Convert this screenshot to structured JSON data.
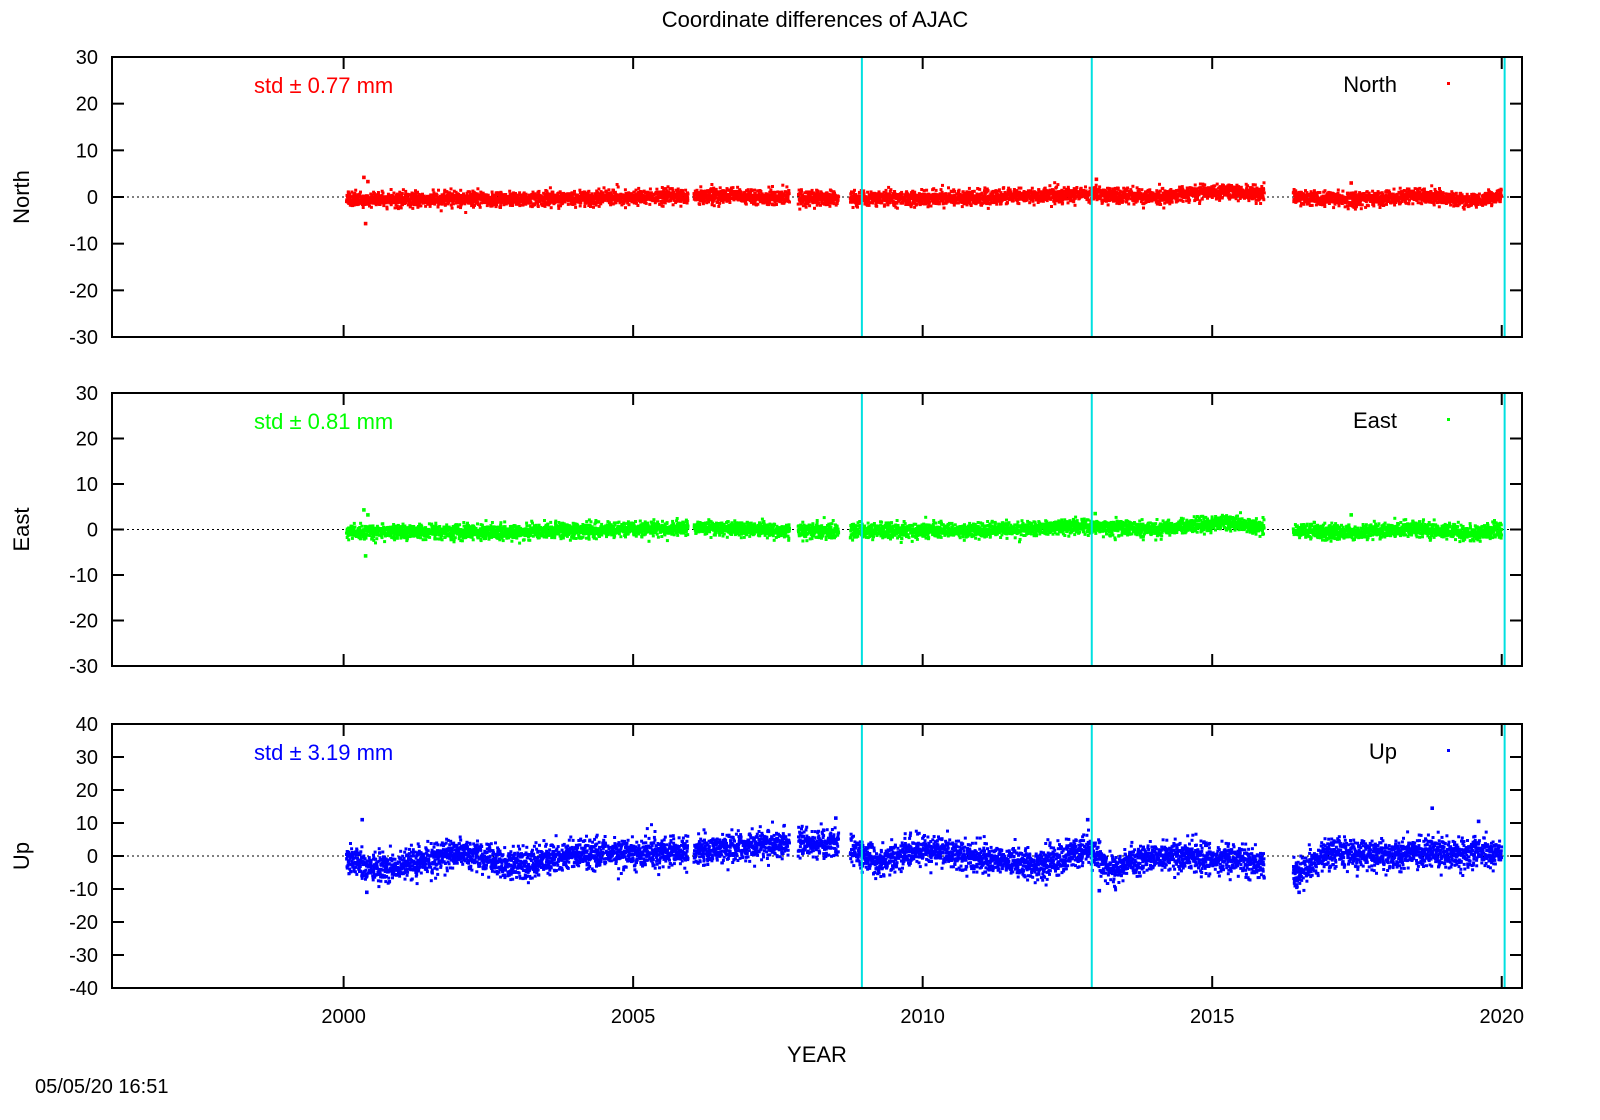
{
  "chart_data": {
    "type": "scatter",
    "title": "Coordinate differences of AJAC",
    "xlabel": "YEAR",
    "xlim": [
      1996.0,
      2020.35
    ],
    "xticks": [
      2000,
      2005,
      2010,
      2015,
      2020
    ],
    "timestamp": "05/05/20 16:51",
    "colors": {
      "axis": "#000000",
      "event_line": "#00e0e0",
      "zero_line": "#000000"
    },
    "event_lines": [
      2008.95,
      2012.92,
      2020.05
    ],
    "panels": [
      {
        "name": "North",
        "ylabel": "North",
        "ylim": [
          -30,
          30
        ],
        "yticks": [
          -30,
          -20,
          -10,
          0,
          10,
          20,
          30
        ],
        "std_label": "std ± 0.77 mm",
        "legend": "North",
        "legend_position": "top-right",
        "color": "#ff0000",
        "grid": false,
        "x_start": 2000.05,
        "x_end": 2020.0,
        "noise": 0.77,
        "gaps": [
          [
            2005.95,
            2006.05
          ],
          [
            2007.7,
            2007.85
          ],
          [
            2008.55,
            2008.75
          ],
          [
            2015.9,
            2016.4
          ]
        ],
        "trend": [
          [
            2000.0,
            -0.5
          ],
          [
            2003.0,
            -0.5
          ],
          [
            2006.0,
            0.3
          ],
          [
            2008.0,
            -0.3
          ],
          [
            2011.0,
            -0.2
          ],
          [
            2013.0,
            0.7
          ],
          [
            2014.0,
            0.0
          ],
          [
            2015.2,
            1.4
          ],
          [
            2016.5,
            -0.2
          ],
          [
            2017.5,
            -0.6
          ],
          [
            2018.5,
            0.3
          ],
          [
            2019.5,
            -0.8
          ],
          [
            2020.0,
            0.0
          ]
        ],
        "outliers": [
          [
            2000.35,
            4.2
          ],
          [
            2000.42,
            3.3
          ],
          [
            2000.38,
            -5.7
          ],
          [
            2013.0,
            3.8
          ],
          [
            2017.4,
            3.0
          ]
        ]
      },
      {
        "name": "East",
        "ylabel": "East",
        "ylim": [
          -30,
          30
        ],
        "yticks": [
          -30,
          -20,
          -10,
          0,
          10,
          20,
          30
        ],
        "std_label": "std ± 0.81 mm",
        "legend": "East",
        "legend_position": "top-right",
        "color": "#00ff00",
        "grid": false,
        "x_start": 2000.05,
        "x_end": 2020.0,
        "noise": 0.81,
        "gaps": [
          [
            2005.95,
            2006.05
          ],
          [
            2007.7,
            2007.85
          ],
          [
            2008.55,
            2008.75
          ],
          [
            2015.9,
            2016.4
          ]
        ],
        "trend": [
          [
            2000.0,
            -0.5
          ],
          [
            2003.0,
            -0.5
          ],
          [
            2006.0,
            0.3
          ],
          [
            2008.0,
            -0.3
          ],
          [
            2011.0,
            -0.2
          ],
          [
            2013.0,
            0.8
          ],
          [
            2014.0,
            0.0
          ],
          [
            2015.2,
            1.5
          ],
          [
            2016.5,
            -0.3
          ],
          [
            2017.5,
            -0.7
          ],
          [
            2018.5,
            0.3
          ],
          [
            2019.5,
            -0.9
          ],
          [
            2020.0,
            0.0
          ]
        ],
        "outliers": [
          [
            2000.35,
            4.3
          ],
          [
            2000.42,
            3.2
          ],
          [
            2000.38,
            -5.8
          ],
          [
            2012.98,
            3.5
          ],
          [
            2017.4,
            3.2
          ]
        ]
      },
      {
        "name": "Up",
        "ylabel": "Up",
        "ylim": [
          -40,
          40
        ],
        "yticks": [
          -40,
          -30,
          -20,
          -10,
          0,
          10,
          20,
          30,
          40
        ],
        "std_label": "std ± 3.19 mm",
        "legend": "Up",
        "legend_position": "top-right",
        "color": "#0000ff",
        "grid": false,
        "x_start": 2000.05,
        "x_end": 2020.0,
        "noise": 2.2,
        "gaps": [
          [
            2005.95,
            2006.05
          ],
          [
            2007.7,
            2007.85
          ],
          [
            2008.55,
            2008.75
          ],
          [
            2015.9,
            2016.4
          ]
        ],
        "trend": [
          [
            2000.0,
            -1.0
          ],
          [
            2000.8,
            -4.0
          ],
          [
            2002.0,
            1.5
          ],
          [
            2003.0,
            -3.0
          ],
          [
            2004.0,
            0.5
          ],
          [
            2005.5,
            1.0
          ],
          [
            2007.5,
            3.5
          ],
          [
            2008.5,
            4.5
          ],
          [
            2009.2,
            -2.0
          ],
          [
            2010.0,
            2.5
          ],
          [
            2011.0,
            -1.0
          ],
          [
            2012.0,
            -3.0
          ],
          [
            2012.9,
            2.0
          ],
          [
            2013.2,
            -4.0
          ],
          [
            2014.0,
            0.0
          ],
          [
            2015.5,
            -1.0
          ],
          [
            2015.9,
            -3.5
          ],
          [
            2016.4,
            -6.0
          ],
          [
            2017.0,
            1.0
          ],
          [
            2018.0,
            0.5
          ],
          [
            2019.0,
            1.0
          ],
          [
            2020.0,
            1.0
          ]
        ],
        "outliers": [
          [
            2000.32,
            11.0
          ],
          [
            2000.4,
            -11.0
          ],
          [
            2008.5,
            11.5
          ],
          [
            2012.85,
            11.0
          ],
          [
            2018.8,
            14.5
          ],
          [
            2016.5,
            -11.0
          ],
          [
            2019.6,
            10.5
          ],
          [
            2013.05,
            -10.5
          ]
        ]
      }
    ]
  }
}
